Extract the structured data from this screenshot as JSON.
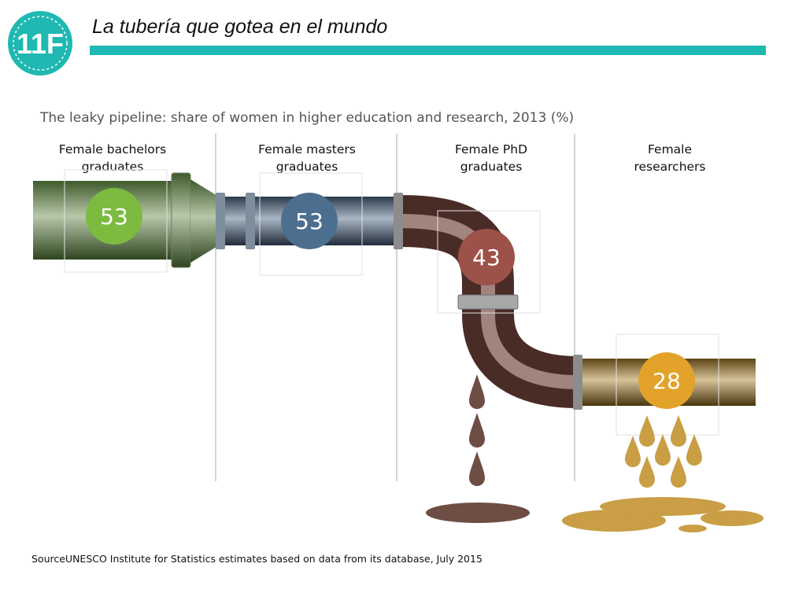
{
  "header": {
    "logo_text": "11F",
    "title": "La tubería que gotea en el mundo"
  },
  "colors": {
    "accent": "#1fb8b2",
    "bachelors": "#7cbb3f",
    "masters": "#4d6f8f",
    "phd": "#9c5149",
    "researchers": "#e3a32a"
  },
  "chart_data": {
    "type": "pictograph",
    "title": "The leaky pipeline: share of women in higher education and research, 2013 (%)",
    "categories": [
      [
        "Female bachelors",
        "graduates"
      ],
      [
        "Female masters",
        "graduates"
      ],
      [
        "Female PhD",
        "graduates"
      ],
      [
        "Female",
        "researchers"
      ]
    ],
    "values": [
      53,
      53,
      43,
      28
    ],
    "unit": "%"
  },
  "source": "SourceUNESCO Institute for Statistics estimates based on data from its database, July 2015"
}
